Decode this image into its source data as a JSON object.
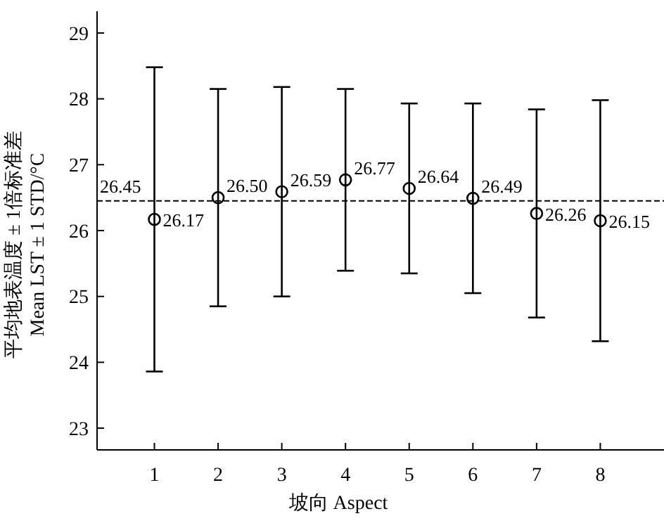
{
  "chart_data": {
    "type": "scatter",
    "xlabel": "坡向 Aspect",
    "ylabel": "平均地表温度 ± 1倍标准差\nMean LST ± 1 STD/°C",
    "x": [
      1,
      2,
      3,
      4,
      5,
      6,
      7,
      8
    ],
    "values": [
      26.17,
      26.5,
      26.59,
      26.77,
      26.64,
      26.49,
      26.26,
      26.15
    ],
    "errors": [
      2.31,
      1.65,
      1.59,
      1.38,
      1.29,
      1.44,
      1.58,
      1.83
    ],
    "value_labels": [
      "26.17",
      "26.50",
      "26.59",
      "26.77",
      "26.64",
      "26.49",
      "26.26",
      "26.15"
    ],
    "color": "#000000",
    "marker": "circle",
    "xlim": [
      0.1,
      9
    ],
    "xticks": [
      1,
      2,
      3,
      4,
      5,
      6,
      7,
      8
    ],
    "ylim": [
      22.67,
      29.33
    ],
    "yticks": [
      23,
      24,
      25,
      26,
      27,
      28,
      29
    ],
    "ref_lines": [
      {
        "axis": "y",
        "value": 26.45,
        "label": "26.45",
        "line_style": "dashed",
        "color": "#000000"
      }
    ],
    "tick_labels": true
  }
}
